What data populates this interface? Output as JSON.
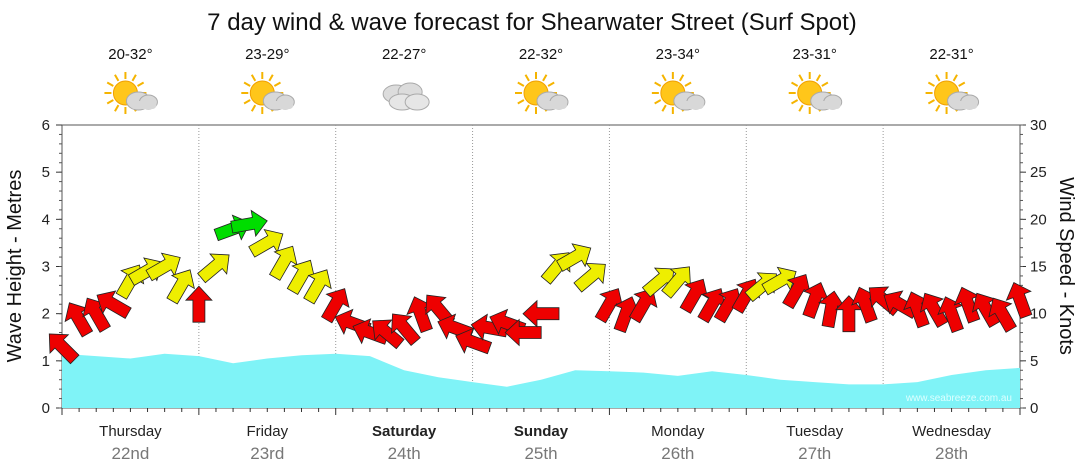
{
  "chart_data": {
    "type": "area",
    "title": "7 day wind & wave forecast for Shearwater Street (Surf Spot)",
    "ylabel_left": "Wave Height - Metres",
    "ylabel_right": "Wind Speed - Knots",
    "ylim_left": [
      0,
      6
    ],
    "ylim_right": [
      0,
      30
    ],
    "yticks_left": [
      "0",
      "1",
      "2",
      "3",
      "4",
      "5",
      "6"
    ],
    "yticks_right": [
      "0",
      "5",
      "10",
      "15",
      "20",
      "25",
      "30"
    ],
    "days": [
      {
        "name": "Thursday",
        "date": "22nd",
        "temp": "20-32°",
        "weather": "partly-cloudy",
        "bold": false
      },
      {
        "name": "Friday",
        "date": "23rd",
        "temp": "23-29°",
        "weather": "partly-cloudy",
        "bold": false
      },
      {
        "name": "Saturday",
        "date": "24th",
        "temp": "22-27°",
        "weather": "cloudy",
        "bold": true
      },
      {
        "name": "Sunday",
        "date": "25th",
        "temp": "22-32°",
        "weather": "partly-cloudy",
        "bold": true
      },
      {
        "name": "Monday",
        "date": "26th",
        "temp": "23-34°",
        "weather": "partly-cloudy",
        "bold": false
      },
      {
        "name": "Tuesday",
        "date": "27th",
        "temp": "23-31°",
        "weather": "partly-cloudy",
        "bold": false
      },
      {
        "name": "Wednesday",
        "date": "28th",
        "temp": "22-31°",
        "weather": "partly-cloudy",
        "bold": false
      }
    ],
    "wave_series": {
      "name": "Wave height (m)",
      "x_days": [
        0,
        0.25,
        0.5,
        0.75,
        1.0,
        1.25,
        1.5,
        1.75,
        2.0,
        2.25,
        2.5,
        2.75,
        3.0,
        3.25,
        3.5,
        3.75,
        4.0,
        4.25,
        4.5,
        4.75,
        5.0,
        5.25,
        5.5,
        5.75,
        6.0,
        6.25,
        6.5,
        6.75,
        7.0
      ],
      "values": [
        1.15,
        1.1,
        1.05,
        1.15,
        1.1,
        0.95,
        1.05,
        1.12,
        1.15,
        1.1,
        0.8,
        0.65,
        0.55,
        0.45,
        0.6,
        0.8,
        0.78,
        0.75,
        0.68,
        0.78,
        0.7,
        0.6,
        0.55,
        0.5,
        0.5,
        0.55,
        0.7,
        0.8,
        0.85
      ]
    },
    "wind_series": {
      "name": "Wind speed (knots)",
      "x_days": [
        0.0,
        0.12,
        0.25,
        0.37,
        0.5,
        0.62,
        0.75,
        0.87,
        1.0,
        1.12,
        1.25,
        1.37,
        1.5,
        1.62,
        1.75,
        1.87,
        2.0,
        2.12,
        2.25,
        2.37,
        2.5,
        2.62,
        2.75,
        2.87,
        3.0,
        3.12,
        3.25,
        3.37,
        3.5,
        3.62,
        3.75,
        3.87,
        4.0,
        4.12,
        4.25,
        4.37,
        4.5,
        4.62,
        4.75,
        4.87,
        5.0,
        5.12,
        5.25,
        5.37,
        5.5,
        5.62,
        5.75,
        5.87,
        6.0,
        6.12,
        6.25,
        6.37,
        6.5,
        6.62,
        6.75,
        6.87,
        7.0
      ],
      "values": [
        6.5,
        9.5,
        10,
        11,
        13.5,
        14.5,
        15,
        13,
        11,
        15,
        19,
        19.5,
        17.5,
        15.5,
        14,
        13,
        11,
        9,
        8,
        8,
        8.5,
        10,
        10.5,
        8.5,
        7,
        8.5,
        9,
        8,
        10,
        15,
        16,
        14,
        11,
        10,
        11,
        13.5,
        13.5,
        12,
        11,
        11,
        12,
        13,
        13.5,
        12.5,
        11.5,
        10.5,
        10,
        11,
        11.5,
        11,
        10.5,
        10.5,
        10,
        11,
        10.5,
        10,
        11.5
      ],
      "directions_deg": [
        225,
        240,
        240,
        210,
        300,
        330,
        330,
        300,
        270,
        320,
        340,
        350,
        330,
        300,
        300,
        300,
        300,
        200,
        200,
        220,
        230,
        250,
        230,
        200,
        200,
        190,
        200,
        180,
        180,
        310,
        330,
        320,
        300,
        290,
        300,
        320,
        310,
        300,
        300,
        300,
        300,
        320,
        330,
        300,
        290,
        280,
        270,
        250,
        220,
        210,
        250,
        240,
        250,
        250,
        240,
        240,
        250
      ],
      "speed_colors": {
        "light": "#ee0000",
        "moderate": "#eeee00",
        "strong": "#00dd00"
      }
    },
    "credit": "www.seabreeze.com.au"
  }
}
